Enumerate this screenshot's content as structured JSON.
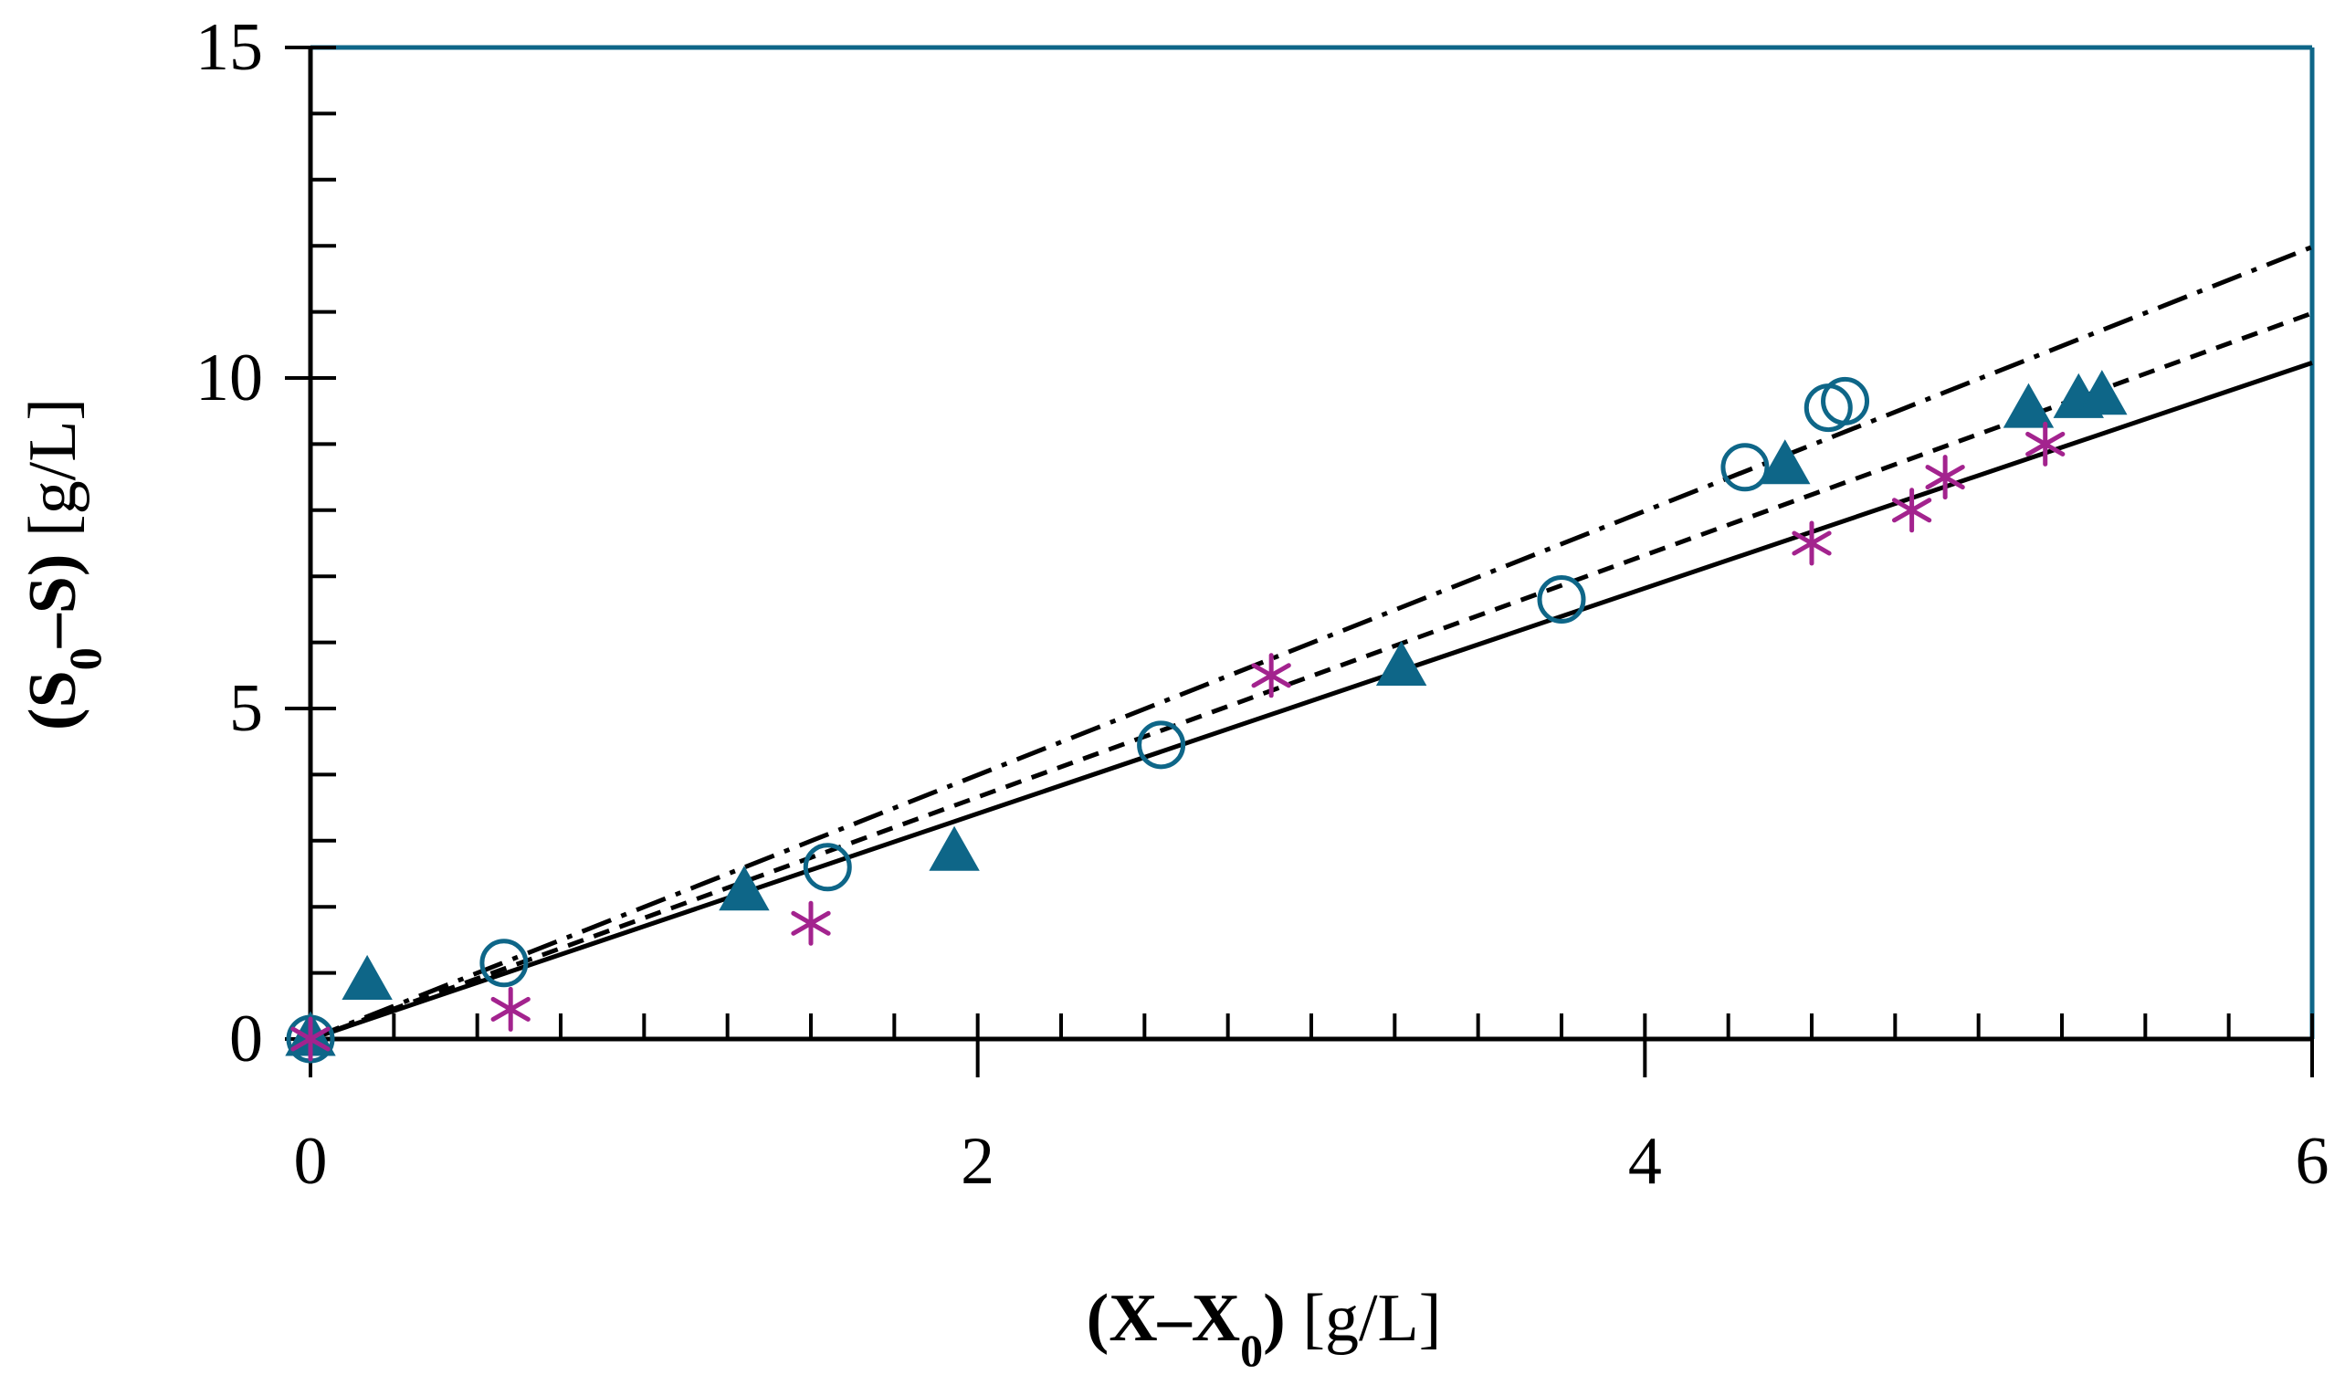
{
  "chart_data": {
    "type": "scatter",
    "title": "",
    "xlabel": {
      "bold_parts": [
        "(X–X",
        "0",
        ")"
      ],
      "plain": " [g/L]",
      "text": "(X–X0) [g/L]"
    },
    "ylabel": {
      "bold_parts": [
        "(S",
        "0",
        "–S)"
      ],
      "plain": " [g/L]",
      "text": "(S0–S) [g/L]"
    },
    "xlim": [
      0,
      6
    ],
    "ylim": [
      0,
      15
    ],
    "x_ticks": [
      "0",
      "2",
      "4",
      "6"
    ],
    "y_ticks": [
      "0",
      "5",
      "10",
      "15"
    ],
    "x_tick_values": [
      0,
      2,
      4,
      6
    ],
    "y_tick_values": [
      0,
      5,
      10,
      15
    ],
    "x_minor_step": 0.25,
    "y_minor_step": 1,
    "grid": false,
    "colors": {
      "teal": "#0e6688",
      "magenta": "#a3238e",
      "frame": "#0e6688",
      "axis": "#000000"
    },
    "series": [
      {
        "name": "circles",
        "marker": "open-circle",
        "color": "#0e6688",
        "points": [
          [
            0.0,
            0.0
          ],
          [
            0.58,
            1.15
          ],
          [
            1.55,
            2.6
          ],
          [
            2.55,
            4.45
          ],
          [
            3.75,
            6.65
          ],
          [
            4.3,
            8.65
          ],
          [
            4.55,
            9.55
          ],
          [
            4.6,
            9.65
          ]
        ]
      },
      {
        "name": "triangles",
        "marker": "filled-triangle",
        "color": "#0e6688",
        "points": [
          [
            0.0,
            0.0
          ],
          [
            0.17,
            0.85
          ],
          [
            1.3,
            2.2
          ],
          [
            1.93,
            2.8
          ],
          [
            3.27,
            5.6
          ],
          [
            4.42,
            8.65
          ],
          [
            5.15,
            9.5
          ],
          [
            5.3,
            9.65
          ],
          [
            5.37,
            9.7
          ]
        ]
      },
      {
        "name": "stars",
        "marker": "asterisk",
        "color": "#a3238e",
        "points": [
          [
            0.0,
            0.0
          ],
          [
            0.6,
            0.45
          ],
          [
            1.5,
            1.75
          ],
          [
            2.88,
            5.5
          ],
          [
            4.5,
            7.5
          ],
          [
            4.8,
            8.0
          ],
          [
            4.9,
            8.5
          ],
          [
            5.2,
            9.0
          ]
        ]
      }
    ],
    "fit_lines": [
      {
        "name": "solid fit",
        "style": "solid",
        "slope": 1.705,
        "intercept": 0
      },
      {
        "name": "dashed fit",
        "style": "dashed",
        "slope": 1.83,
        "intercept": 0
      },
      {
        "name": "dash-dot fit",
        "style": "dashdot",
        "slope": 1.997,
        "intercept": 0
      }
    ]
  }
}
